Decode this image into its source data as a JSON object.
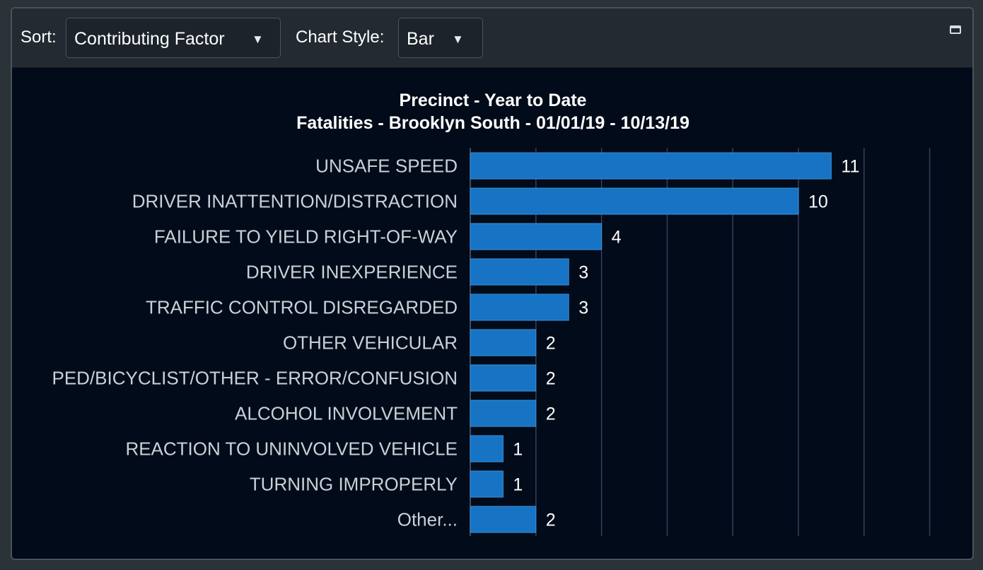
{
  "toolbar": {
    "sort_label": "Sort:",
    "sort_value": "Contributing Factor",
    "style_label": "Chart Style:",
    "style_value": "Bar",
    "caret_icon": "triangle-down-icon",
    "minimize_icon": "minimize-window-icon"
  },
  "colors": {
    "background": "#010b19",
    "toolbar": "#232a31",
    "bar": "#1774c4",
    "grid": "#3a3e5c",
    "category_text": "#c9d1d8",
    "value_text": "#ffffff"
  },
  "chart_data": {
    "type": "bar",
    "orientation": "horizontal",
    "title": "Precinct - Year to Date",
    "subtitle": "Fatalities - Brooklyn South - 01/01/19 - 10/13/19",
    "categories": [
      "UNSAFE SPEED",
      "DRIVER INATTENTION/DISTRACTION",
      "FAILURE TO YIELD RIGHT-OF-WAY",
      "DRIVER INEXPERIENCE",
      "TRAFFIC CONTROL DISREGARDED",
      "OTHER VEHICULAR",
      "PED/BICYCLIST/OTHER - ERROR/CONFUSION",
      "ALCOHOL INVOLVEMENT",
      "REACTION TO UNINVOLVED VEHICLE",
      "TURNING IMPROPERLY",
      "Other..."
    ],
    "values": [
      11,
      10,
      4,
      3,
      3,
      2,
      2,
      2,
      1,
      1,
      2
    ],
    "xlim": [
      0,
      14
    ],
    "grid_step": 2,
    "grid": true,
    "data_labels": true
  }
}
